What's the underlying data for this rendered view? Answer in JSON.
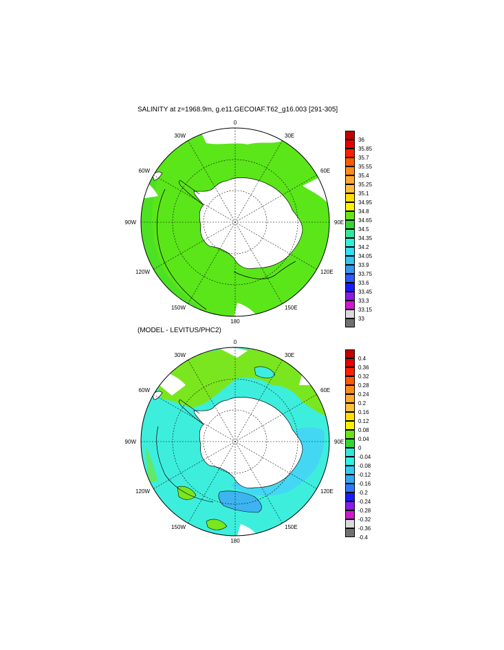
{
  "panel1": {
    "title": "SALINITY at z=1968.9m, g.e11.GECOIAF.T62_g16.003 [291-305]",
    "lon_labels": {
      "0": "0",
      "30E": "30E",
      "60E": "60E",
      "90E": "90E",
      "120E": "120E",
      "150E": "150E",
      "180": "180",
      "150W": "150W",
      "120W": "120W",
      "90W": "90W",
      "60W": "60W",
      "30W": "30W"
    },
    "colorbar": {
      "labels": [
        "36",
        "35.85",
        "35.7",
        "35.55",
        "35.4",
        "35.25",
        "35.1",
        "34.95",
        "34.8",
        "34.65",
        "34.5",
        "34.35",
        "34.2",
        "34.05",
        "33.9",
        "33.75",
        "33.6",
        "33.45",
        "33.3",
        "33.15",
        "33"
      ],
      "colors": [
        "#c00000",
        "#e40000",
        "#ff2000",
        "#ff5a00",
        "#ff8c1a",
        "#ffa833",
        "#ffc040",
        "#ffe000",
        "#fff200",
        "#66e619",
        "#33d633",
        "#33e69c",
        "#33f0d9",
        "#33e0f0",
        "#33c4f0",
        "#3399f0",
        "#2a5cff",
        "#1a1aff",
        "#8a1ae6",
        "#cc1acc",
        "#d9d9d9",
        "#707070"
      ]
    }
  },
  "panel2": {
    "title": "(MODEL - LEVITUS/PHC2)",
    "lon_labels": {
      "0": "0",
      "30E": "30E",
      "60E": "60E",
      "90E": "90E",
      "120E": "120E",
      "150E": "150E",
      "180": "180",
      "150W": "150W",
      "120W": "120W",
      "90W": "90W",
      "60W": "60W",
      "30W": "30W"
    },
    "colorbar": {
      "labels": [
        "0.4",
        "0.36",
        "0.32",
        "0.28",
        "0.24",
        "0.2",
        "0.16",
        "0.12",
        "0.08",
        "0.04",
        "0",
        "-0.04",
        "-0.08",
        "-0.12",
        "-0.16",
        "-0.2",
        "-0.24",
        "-0.28",
        "-0.32",
        "-0.36",
        "-0.4"
      ],
      "colors": [
        "#c00000",
        "#e40000",
        "#ff2000",
        "#ff5a00",
        "#ff8c1a",
        "#ffa833",
        "#ffc040",
        "#ffe000",
        "#fff200",
        "#66e619",
        "#33d633",
        "#33e6d9",
        "#33f0e6",
        "#33ccf0",
        "#33aaf0",
        "#2a7cff",
        "#1a1aff",
        "#8a1ae6",
        "#cc1acc",
        "#d9d9d9",
        "#707070"
      ]
    }
  },
  "colors": {
    "salinity_main": "#5ae619",
    "salinity_dark": "#33d633",
    "diff_main": "#3deedd",
    "diff_cyan2": "#44d7f3",
    "diff_green": "#7ae61f",
    "diff_blue": "#3db4f0",
    "land": "#ffffff",
    "line": "#000000"
  }
}
